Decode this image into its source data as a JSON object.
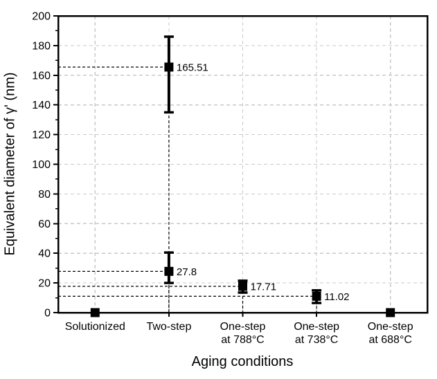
{
  "chart_data": {
    "type": "scatter",
    "title": "",
    "xlabel": "Aging conditions",
    "ylabel": "Equivalent diameter of γ' (nm)",
    "ylim": [
      0,
      200
    ],
    "y_major_step": 20,
    "y_minor_step": 10,
    "grid": {
      "show": true,
      "style": "dashed",
      "color": "#c9c9c9"
    },
    "legend": null,
    "marker": "filled-square",
    "categories": [
      "Solutionized",
      "Two-step",
      "One-step at 788°C",
      "One-step at 738°C",
      "One-step at 688°C"
    ],
    "category_label_lines": [
      [
        "Solutionized"
      ],
      [
        "Two-step"
      ],
      [
        "One-step",
        "at 788°C"
      ],
      [
        "One-step",
        "at 738°C"
      ],
      [
        "One-step",
        "at 688°C"
      ]
    ],
    "points": [
      {
        "category": "Solutionized",
        "value": 0,
        "label": "",
        "err_low": null,
        "err_high": null,
        "guide_lines": false
      },
      {
        "category": "Two-step",
        "value": 165.51,
        "label": "165.51",
        "err_low": 135,
        "err_high": 186,
        "guide_lines": true
      },
      {
        "category": "Two-step",
        "value": 27.8,
        "label": "27.8",
        "err_low": 20,
        "err_high": 40.5,
        "guide_lines": true
      },
      {
        "category": "One-step at 788°C",
        "value": 17.71,
        "label": "17.71",
        "err_low": 13.5,
        "err_high": 21.5,
        "guide_lines": true
      },
      {
        "category": "One-step at 738°C",
        "value": 11.02,
        "label": "11.02",
        "err_low": 6.5,
        "err_high": 15,
        "guide_lines": true
      },
      {
        "category": "One-step at 688°C",
        "value": 0,
        "label": "",
        "err_low": null,
        "err_high": null,
        "guide_lines": false
      }
    ],
    "colors": {
      "data": "#000000",
      "frame": "#000000",
      "grid": "#c9c9c9",
      "background": "#ffffff"
    }
  }
}
